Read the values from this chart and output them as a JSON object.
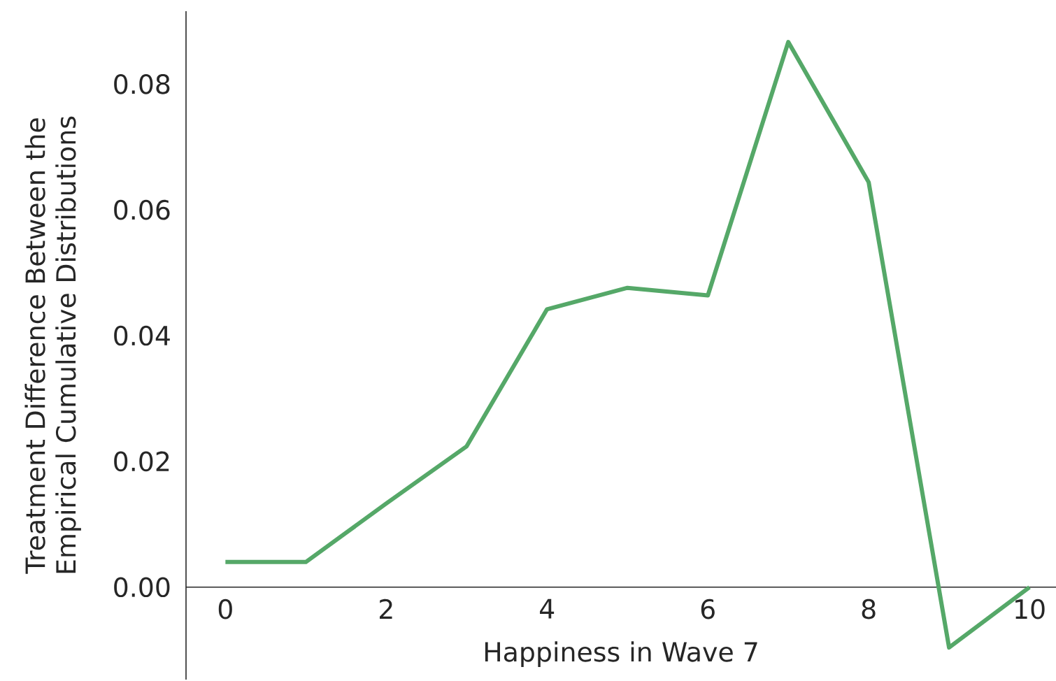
{
  "chart_data": {
    "type": "line",
    "xlabel": "Happiness in Wave 7",
    "ylabel": "Treatment Difference Between the Empirical Cumulative Distributions",
    "x": [
      0,
      1,
      2,
      3,
      4,
      5,
      6,
      7,
      8,
      9,
      10
    ],
    "series": [
      {
        "color": "#55a868",
        "values": [
          0.004,
          0.004,
          0.0133,
          0.0224,
          0.0442,
          0.0476,
          0.0464,
          0.0867,
          0.0644,
          -0.0096,
          0.0
        ]
      }
    ],
    "xlim": [
      -0.49,
      10.33
    ],
    "ylim": [
      -0.0147,
      0.0916
    ],
    "xticks": [
      0,
      2,
      4,
      6,
      8,
      10
    ],
    "yticks": [
      {
        "value": 0,
        "label": "0.00"
      },
      {
        "value": 0.02,
        "label": "0.02"
      },
      {
        "value": 0.04,
        "label": "0.04"
      },
      {
        "value": 0.06,
        "label": "0.06"
      },
      {
        "value": 0.08,
        "label": "0.08"
      }
    ],
    "grid": false
  }
}
